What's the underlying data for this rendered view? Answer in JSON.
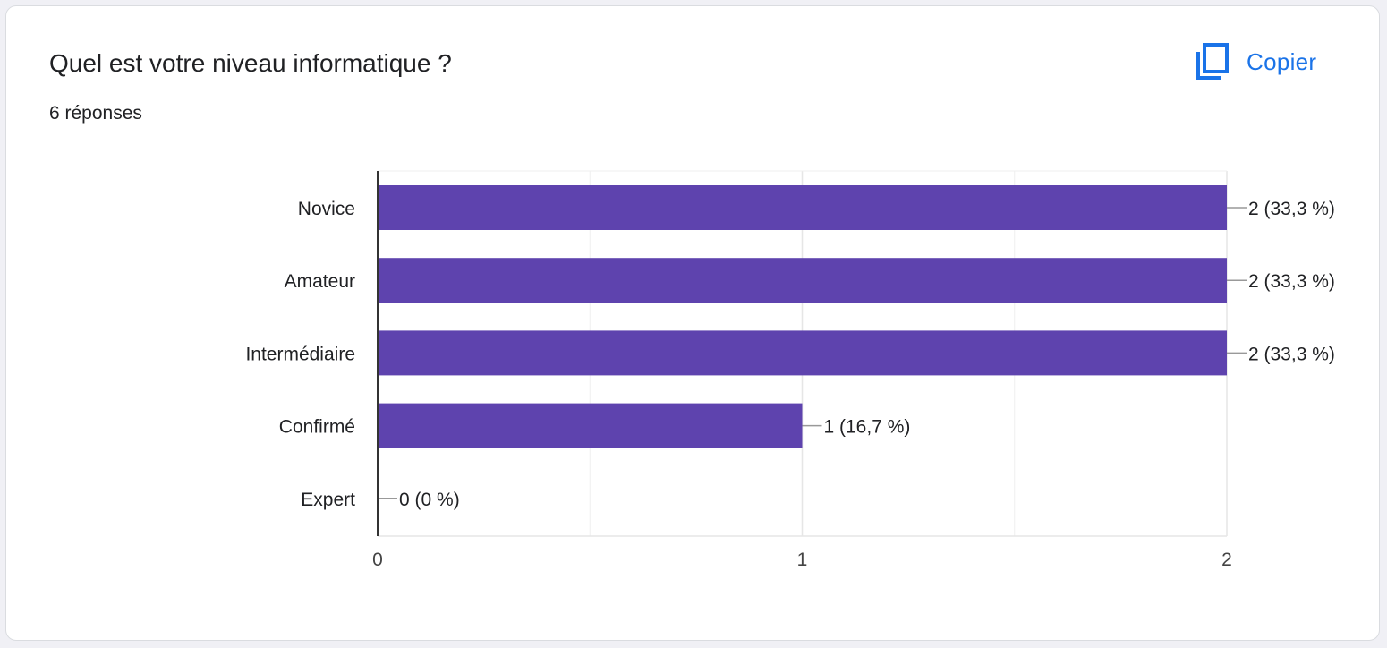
{
  "question": {
    "title": "Quel est votre niveau informatique ?",
    "responses": "6 réponses"
  },
  "toolbar": {
    "copy_label": "Copier",
    "copy_icon": "content-copy-icon"
  },
  "colors": {
    "bar": "#5e43ae",
    "accent": "#1a73e8",
    "text": "#202124",
    "grid": "#e6e6e6",
    "axis": "#333333"
  },
  "chart_data": {
    "type": "bar",
    "orientation": "horizontal",
    "categories": [
      "Novice",
      "Amateur",
      "Intermédiaire",
      "Confirmé",
      "Expert"
    ],
    "values": [
      2,
      2,
      2,
      1,
      0
    ],
    "data_labels": [
      "2 (33,3 %)",
      "2 (33,3 %)",
      "2 (33,3 %)",
      "1 (16,7 %)",
      "0 (0 %)"
    ],
    "xlim": [
      0,
      2
    ],
    "x_ticks": [
      0,
      1,
      2
    ],
    "x_tick_labels": [
      "0",
      "1",
      "2"
    ],
    "minor_gridlines": [
      0.5,
      1.5
    ],
    "grid": true,
    "legend": "none"
  }
}
